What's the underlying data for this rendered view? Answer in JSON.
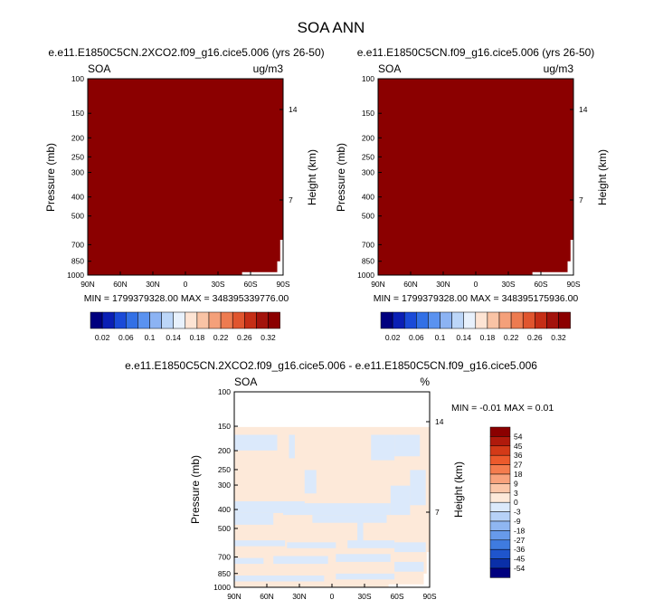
{
  "figure": {
    "title": "SOA ANN",
    "height_axis_label": "Height (km)"
  },
  "chart_data": [
    {
      "type": "heatmap",
      "subtitle": "e.e11.E1850C5CN.2XCO2.f09_g16.cice5.006 (yrs 26-50)",
      "left_label": "SOA",
      "right_label": "ug/m3",
      "ylabel": "Pressure (mb)",
      "x_ticks": [
        "90N",
        "60N",
        "30N",
        "0",
        "30S",
        "60S",
        "90S"
      ],
      "y_ticks": [
        "100",
        "150",
        "200",
        "250",
        "300",
        "400",
        "500",
        "700",
        "850",
        "1000"
      ],
      "y_right_ticks": [
        "14",
        "7"
      ],
      "ylim": [
        1000,
        100
      ],
      "min_max": "MIN = 1799379328.00   MAX = 348395339776.00",
      "fill_color": "#8b0000",
      "colorbar": {
        "labels": [
          "0.02",
          "0.06",
          "0.1",
          "0.14",
          "0.18",
          "0.22",
          "0.26",
          "0.32"
        ],
        "colors": [
          "#00007f",
          "#0a1fb5",
          "#1a4ad8",
          "#3270e6",
          "#5a92f0",
          "#8cb3f3",
          "#bcd6f8",
          "#e8f1fc",
          "#fde4d4",
          "#f9c3a5",
          "#f4a07a",
          "#ed7b50",
          "#e0552e",
          "#c52e16",
          "#a3130c",
          "#8b0000"
        ]
      }
    },
    {
      "type": "heatmap",
      "subtitle": "e.e11.E1850C5CN.f09_g16.cice5.006 (yrs 26-50)",
      "left_label": "SOA",
      "right_label": "ug/m3",
      "ylabel": "Pressure (mb)",
      "x_ticks": [
        "90N",
        "60N",
        "30N",
        "0",
        "30S",
        "60S",
        "90S"
      ],
      "y_ticks": [
        "100",
        "150",
        "200",
        "250",
        "300",
        "400",
        "500",
        "700",
        "850",
        "1000"
      ],
      "y_right_ticks": [
        "14",
        "7"
      ],
      "ylim": [
        1000,
        100
      ],
      "min_max": "MIN = 1799379328.00   MAX = 348395175936.00",
      "fill_color": "#8b0000",
      "colorbar": {
        "labels": [
          "0.02",
          "0.06",
          "0.1",
          "0.14",
          "0.18",
          "0.22",
          "0.26",
          "0.32"
        ],
        "colors": [
          "#00007f",
          "#0a1fb5",
          "#1a4ad8",
          "#3270e6",
          "#5a92f0",
          "#8cb3f3",
          "#bcd6f8",
          "#e8f1fc",
          "#fde4d4",
          "#f9c3a5",
          "#f4a07a",
          "#ed7b50",
          "#e0552e",
          "#c52e16",
          "#a3130c",
          "#8b0000"
        ]
      }
    },
    {
      "type": "heatmap",
      "subtitle": "e.e11.E1850C5CN.2XCO2.f09_g16.cice5.006 - e.e11.E1850C5CN.f09_g16.cice5.006",
      "left_label": "SOA",
      "right_label": "%",
      "ylabel": "Pressure (mb)",
      "x_ticks": [
        "90N",
        "60N",
        "30N",
        "0",
        "30S",
        "60S",
        "90S"
      ],
      "y_ticks": [
        "100",
        "150",
        "200",
        "250",
        "300",
        "400",
        "500",
        "700",
        "850",
        "1000"
      ],
      "y_right_ticks": [
        "14",
        "7"
      ],
      "ylim": [
        1000,
        100
      ],
      "min_max": "MIN =  -0.01   MAX =   0.01",
      "fill_color": "#fde9d9",
      "negative_color": "#dbe9fb",
      "colorbar": {
        "labels": [
          "54",
          "45",
          "36",
          "27",
          "18",
          "9",
          "3",
          "0",
          "-3",
          "-9",
          "-18",
          "-27",
          "-36",
          "-45",
          "-54"
        ],
        "colors": [
          "#8b0000",
          "#b01a0c",
          "#d33a18",
          "#ec5a2c",
          "#f47c4e",
          "#f8a27c",
          "#fbc6a8",
          "#fde9d9",
          "#dbe9fb",
          "#b6d1f7",
          "#8fb6f1",
          "#679aea",
          "#3f7be0",
          "#1f55cc",
          "#0a2fa8",
          "#00007f"
        ]
      }
    }
  ]
}
